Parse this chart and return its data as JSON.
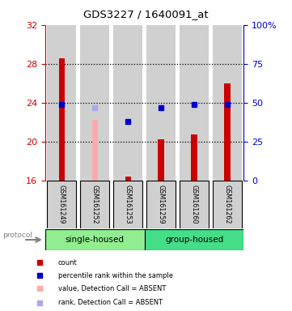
{
  "title": "GDS3227 / 1640091_at",
  "samples": [
    "GSM161249",
    "GSM161252",
    "GSM161253",
    "GSM161259",
    "GSM161260",
    "GSM161262"
  ],
  "ylim_left": [
    16,
    32
  ],
  "yticks_left": [
    16,
    20,
    24,
    28,
    32
  ],
  "yticks_right": [
    0,
    25,
    50,
    75,
    100
  ],
  "yticklabels_right": [
    "0",
    "25",
    "50",
    "75",
    "100%"
  ],
  "bar_heights": [
    28.6,
    0,
    16.4,
    20.2,
    20.7,
    26.0
  ],
  "bar_color": "#cc0000",
  "absent_bar_heights": [
    0,
    22.2,
    0,
    0,
    0,
    0
  ],
  "absent_bar_color": "#ffaaaa",
  "blue_square_y": [
    23.8,
    23.5,
    22.1,
    23.5,
    23.8,
    23.8
  ],
  "blue_square_colors": [
    "#0000cc",
    "#aaaaee",
    "#0000cc",
    "#0000cc",
    "#0000cc",
    "#0000cc"
  ],
  "bar_base": 16,
  "group_single_color": "#90ee90",
  "group_housed_color": "#44dd88",
  "label_color_left": "#cc0000",
  "label_color_right": "#0000cc",
  "legend_items": [
    {
      "label": "count",
      "color": "#cc0000"
    },
    {
      "label": "percentile rank within the sample",
      "color": "#0000cc"
    },
    {
      "label": "value, Detection Call = ABSENT",
      "color": "#ffaaaa"
    },
    {
      "label": "rank, Detection Call = ABSENT",
      "color": "#aaaaee"
    }
  ]
}
